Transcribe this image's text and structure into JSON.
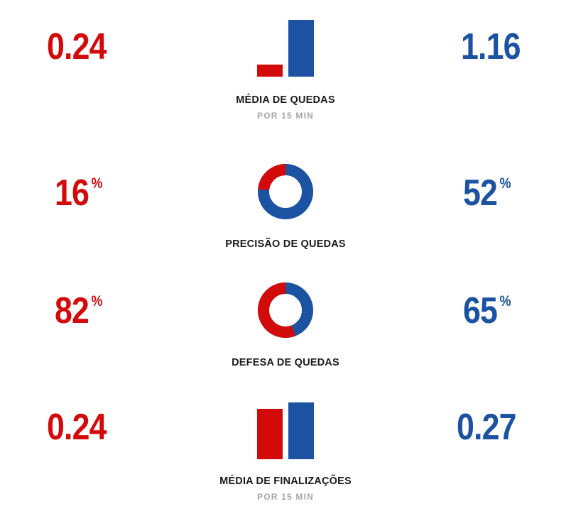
{
  "colors": {
    "red": "#d20a0a",
    "blue": "#1b52a1"
  },
  "stats": [
    {
      "id": "takedown-avg",
      "type": "bars",
      "red_value": "0.24",
      "blue_value": "1.16",
      "red_num": 0.24,
      "blue_num": 1.16,
      "label": "MÉDIA DE QUEDAS",
      "sublabel": "POR 15 MIN"
    },
    {
      "id": "takedown-accuracy",
      "type": "donut",
      "red_value": "16",
      "blue_value": "52",
      "unit": "%",
      "red_fraction": 0.16,
      "blue_fraction": 0.52,
      "label": "PRECISÃO DE QUEDAS"
    },
    {
      "id": "takedown-defense",
      "type": "donut",
      "red_value": "82",
      "blue_value": "65",
      "unit": "%",
      "red_fraction": 0.82,
      "blue_fraction": 0.65,
      "label": "DEFESA DE QUEDAS"
    },
    {
      "id": "submission-avg",
      "type": "bars",
      "red_value": "0.24",
      "blue_value": "0.27",
      "red_num": 0.24,
      "blue_num": 0.27,
      "label": "MÉDIA DE FINALIZAÇÕES",
      "sublabel": "POR 15 MIN"
    }
  ]
}
